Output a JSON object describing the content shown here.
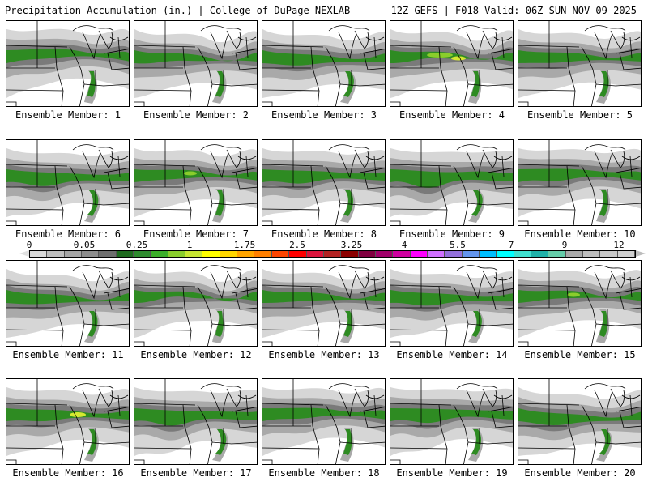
{
  "header": {
    "title": "Precipitation Accumulation (in.) | College of DuPage NEXLAB",
    "run_info": "12Z GEFS | F018 Valid: 06Z SUN NOV 09 2025"
  },
  "panels": [
    {
      "label": "Ensemble Member: 1"
    },
    {
      "label": "Ensemble Member: 2"
    },
    {
      "label": "Ensemble Member: 3"
    },
    {
      "label": "Ensemble Member: 4"
    },
    {
      "label": "Ensemble Member: 5"
    },
    {
      "label": "Ensemble Member: 6"
    },
    {
      "label": "Ensemble Member: 7"
    },
    {
      "label": "Ensemble Member: 8"
    },
    {
      "label": "Ensemble Member: 9"
    },
    {
      "label": "Ensemble Member: 10"
    },
    {
      "label": "Ensemble Member: 11"
    },
    {
      "label": "Ensemble Member: 12"
    },
    {
      "label": "Ensemble Member: 13"
    },
    {
      "label": "Ensemble Member: 14"
    },
    {
      "label": "Ensemble Member: 15"
    },
    {
      "label": "Ensemble Member: 16"
    },
    {
      "label": "Ensemble Member: 17"
    },
    {
      "label": "Ensemble Member: 18"
    },
    {
      "label": "Ensemble Member: 19"
    },
    {
      "label": "Ensemble Member: 20"
    }
  ],
  "colorbar": {
    "ticks": [
      "0",
      "0.05",
      "0.25",
      "1",
      "1.75",
      "2.5",
      "3.25",
      "4",
      "5.5",
      "7",
      "9",
      "12"
    ],
    "colors": [
      "#d9d9d9",
      "#bfbfbf",
      "#a6a6a6",
      "#8c8c8c",
      "#6e6e6e",
      "#1f6b1f",
      "#2e8b2e",
      "#3caf2a",
      "#8acd2c",
      "#c8e632",
      "#ffff00",
      "#ffd700",
      "#ffa500",
      "#ff7f00",
      "#ff4500",
      "#ff0000",
      "#dc143c",
      "#b22222",
      "#8b0000",
      "#800040",
      "#a0006a",
      "#d000a0",
      "#ff00ff",
      "#d070ff",
      "#9370db",
      "#6495ed",
      "#00bfff",
      "#00ffff",
      "#40e0d0",
      "#20b2aa",
      "#66cdaa",
      "#a9a9a9",
      "#bdbdbd",
      "#c8c8c8",
      "#cfcfcf"
    ]
  },
  "palette": {
    "light_gray": "#d6d6d6",
    "mid_gray": "#a9a9a9",
    "dark_gray": "#7a7a7a",
    "green": "#2e8b22",
    "light_green": "#8acd2c",
    "yellow": "#d4e830"
  }
}
